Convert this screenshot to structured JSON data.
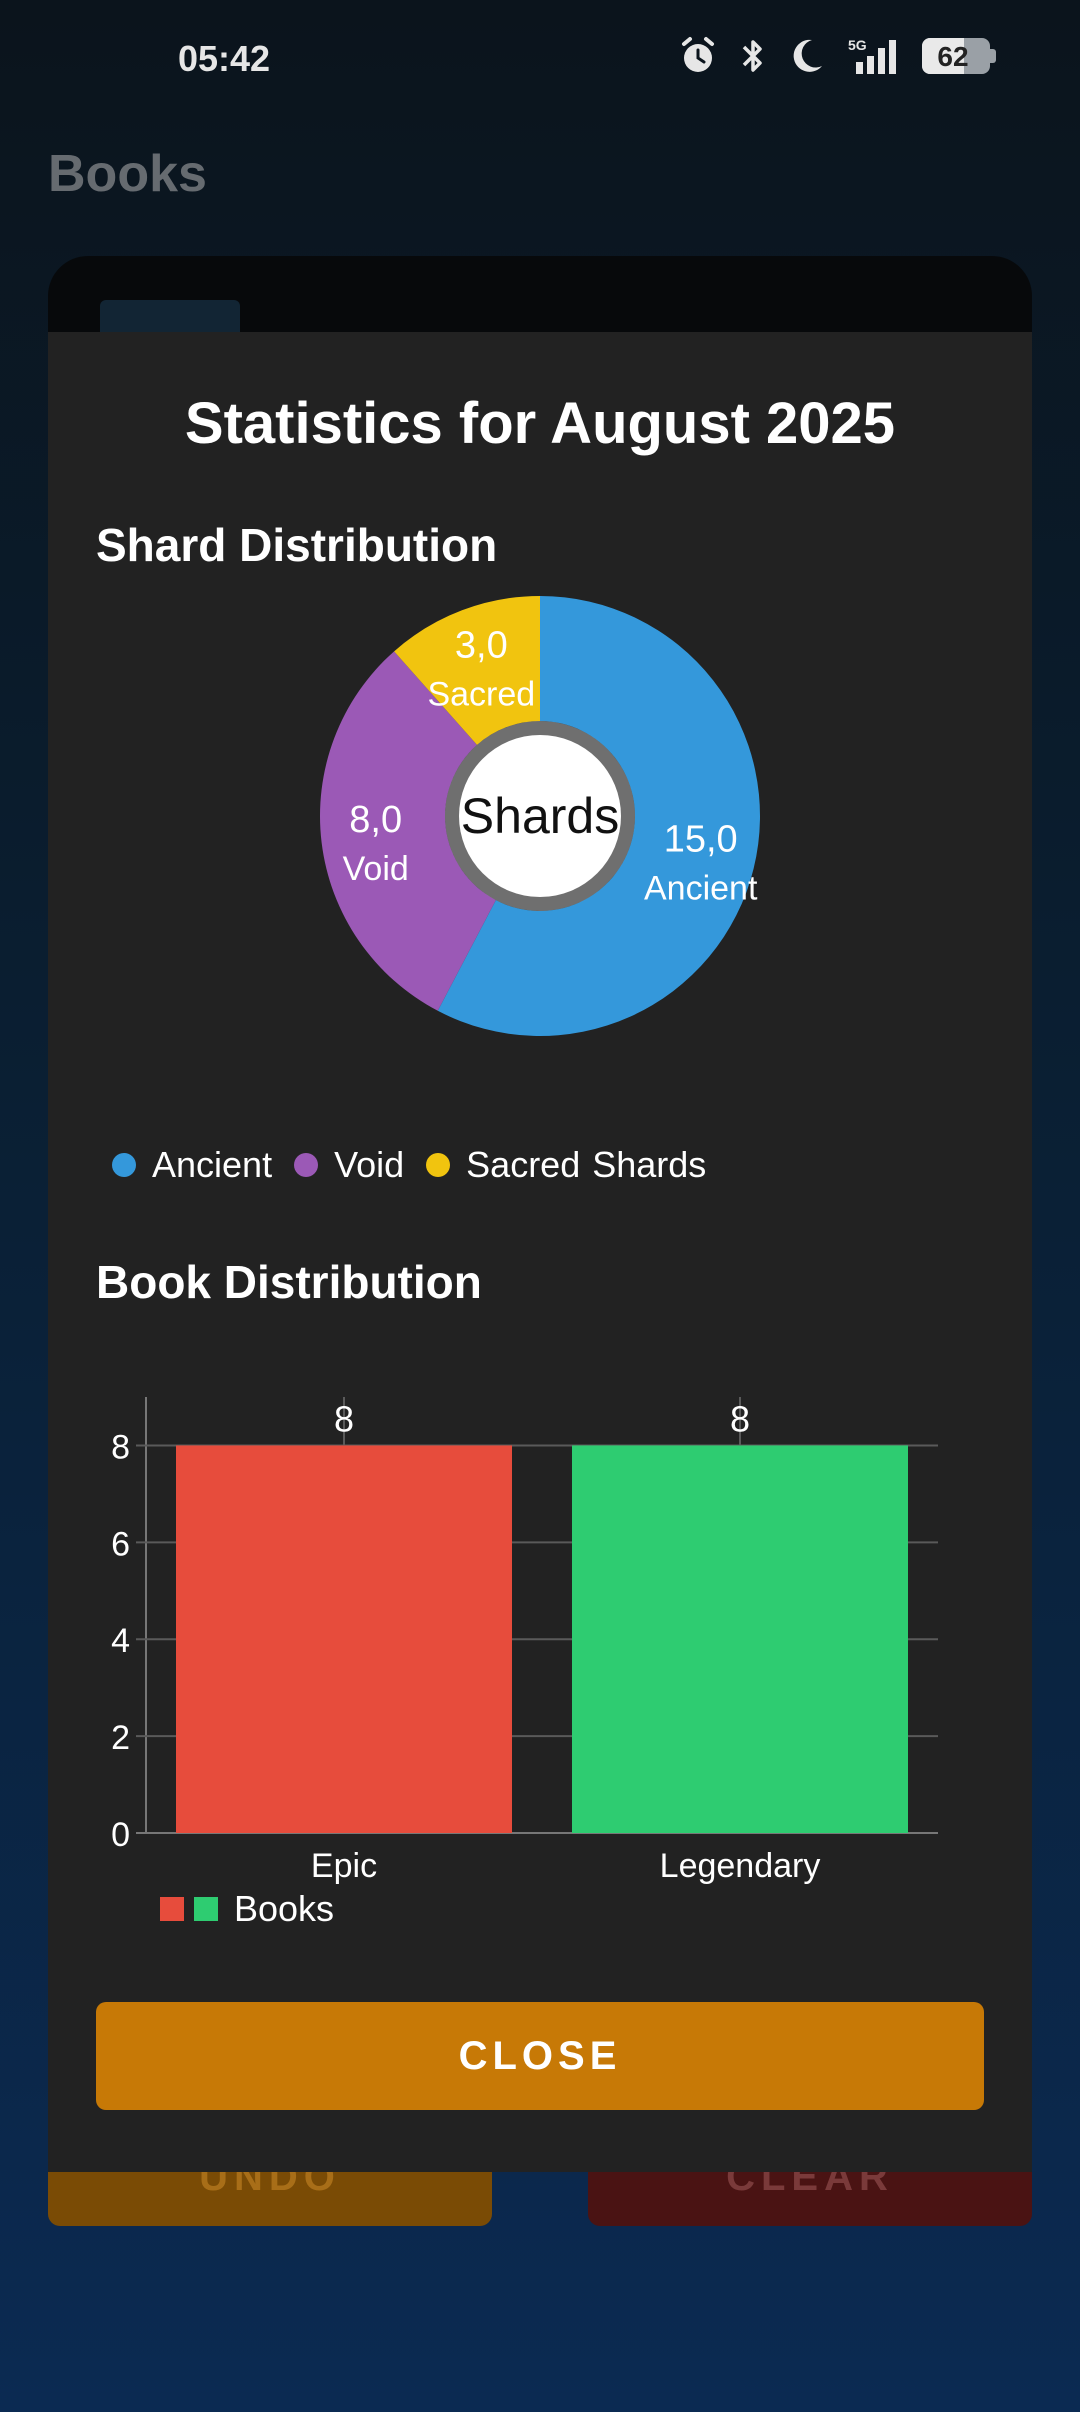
{
  "status_bar": {
    "time": "05:42",
    "icons": [
      "alarm-icon",
      "bluetooth-icon",
      "do-not-disturb-moon-icon",
      "5g-signal-icon",
      "battery-icon"
    ],
    "network": "5G",
    "battery": 62
  },
  "app": {
    "title": "Books"
  },
  "background_buttons": {
    "undo": "UNDO",
    "clear": "CLEAR"
  },
  "dialog": {
    "title": "Statistics for August 2025",
    "close_label": "CLOSE"
  },
  "shard_section": {
    "title": "Shard Distribution",
    "center_label": "Shards"
  },
  "book_section": {
    "title": "Book Distribution"
  },
  "colors": {
    "ancient": "#3498db",
    "void": "#9b59b6",
    "sacred": "#f1c40f",
    "epic": "#e74c3c",
    "legendary": "#2ecc71",
    "close_button": "#c77906"
  },
  "chart_data": [
    {
      "type": "pie",
      "donut": true,
      "center_label": "Shards",
      "slices": [
        {
          "label": "Ancient",
          "value": 15.0,
          "display": "15,0",
          "color": "#3498db"
        },
        {
          "label": "Void",
          "value": 8.0,
          "display": "8,0",
          "color": "#9b59b6"
        },
        {
          "label": "Sacred",
          "value": 3.0,
          "display": "3,0",
          "color": "#f1c40f"
        }
      ],
      "legend": [
        "Ancient",
        "Void",
        "Sacred"
      ],
      "legend_title": "Shards",
      "legend_placement": "bottom-left"
    },
    {
      "type": "bar",
      "categories": [
        "Epic",
        "Legendary"
      ],
      "series": [
        {
          "name": "Books",
          "values": [
            8,
            8
          ],
          "colors": [
            "#e74c3c",
            "#2ecc71"
          ]
        }
      ],
      "yticks": [
        "0",
        "2",
        "4",
        "6",
        "8"
      ],
      "ylim": [
        0,
        9
      ],
      "grid": true,
      "legend_placement": "bottom-left"
    }
  ]
}
